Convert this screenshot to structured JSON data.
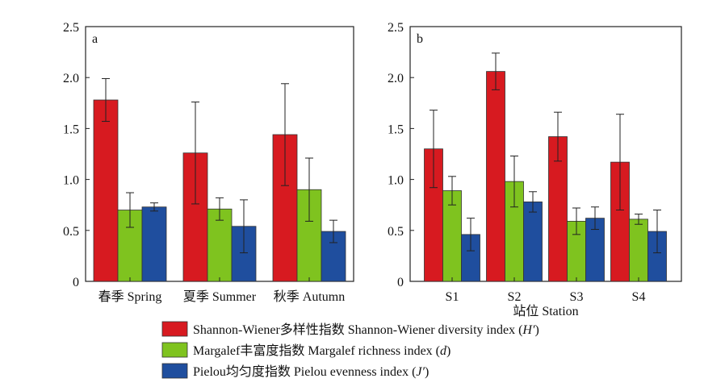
{
  "colors": {
    "shannon": "#d71a20",
    "margalef": "#7fc31f",
    "pielou": "#1f4e9e",
    "axis": "#222222"
  },
  "legend": [
    {
      "label": "Shannon-Wiener多样性指数 Shannon-Wiener diversity index (",
      "var": "H′",
      "suffix": ")",
      "color_key": "shannon"
    },
    {
      "label": "Margalef丰富度指数 Margalef richness index (",
      "var": "d",
      "suffix": ")",
      "color_key": "margalef"
    },
    {
      "label": "Pielou均匀度指数 Pielou evenness index (",
      "var": "J′",
      "suffix": ")",
      "color_key": "pielou"
    }
  ],
  "chart_data": [
    {
      "type": "bar",
      "panel_label": "a",
      "categories": [
        "春季 Spring",
        "夏季 Summer",
        "秋季 Autumn"
      ],
      "xlabel": "",
      "ylim": [
        0,
        2.5
      ],
      "yticks": [
        "0",
        "0.5",
        "1.0",
        "1.5",
        "2.0",
        "2.5"
      ],
      "series": [
        {
          "name": "Shannon-Wiener多样性指数 Shannon-Wiener diversity index (H′)",
          "values": [
            1.78,
            1.26,
            1.44
          ],
          "errors": [
            0.21,
            0.5,
            0.5
          ]
        },
        {
          "name": "Margalef丰富度指数 Margalef richness index (d)",
          "values": [
            0.7,
            0.71,
            0.9
          ],
          "errors": [
            0.17,
            0.11,
            0.31
          ]
        },
        {
          "name": "Pielou均匀度指数 Pielou evenness index (J′)",
          "values": [
            0.73,
            0.54,
            0.49
          ],
          "errors": [
            0.04,
            0.26,
            0.11
          ]
        }
      ]
    },
    {
      "type": "bar",
      "panel_label": "b",
      "categories": [
        "S1",
        "S2",
        "S3",
        "S4"
      ],
      "xlabel": "站位 Station",
      "ylim": [
        0,
        2.5
      ],
      "yticks": [
        "0",
        "0.5",
        "1.0",
        "1.5",
        "2.0",
        "2.5"
      ],
      "series": [
        {
          "name": "Shannon-Wiener多样性指数 Shannon-Wiener diversity index (H′)",
          "values": [
            1.3,
            2.06,
            1.42,
            1.17
          ],
          "errors": [
            0.38,
            0.18,
            0.24,
            0.47
          ]
        },
        {
          "name": "Margalef丰富度指数 Margalef richness index (d)",
          "values": [
            0.89,
            0.98,
            0.59,
            0.61
          ],
          "errors": [
            0.14,
            0.25,
            0.13,
            0.05
          ]
        },
        {
          "name": "Pielou均匀度指数 Pielou evenness index (J′)",
          "values": [
            0.46,
            0.78,
            0.62,
            0.49
          ],
          "errors": [
            0.16,
            0.1,
            0.11,
            0.21
          ]
        }
      ]
    }
  ]
}
